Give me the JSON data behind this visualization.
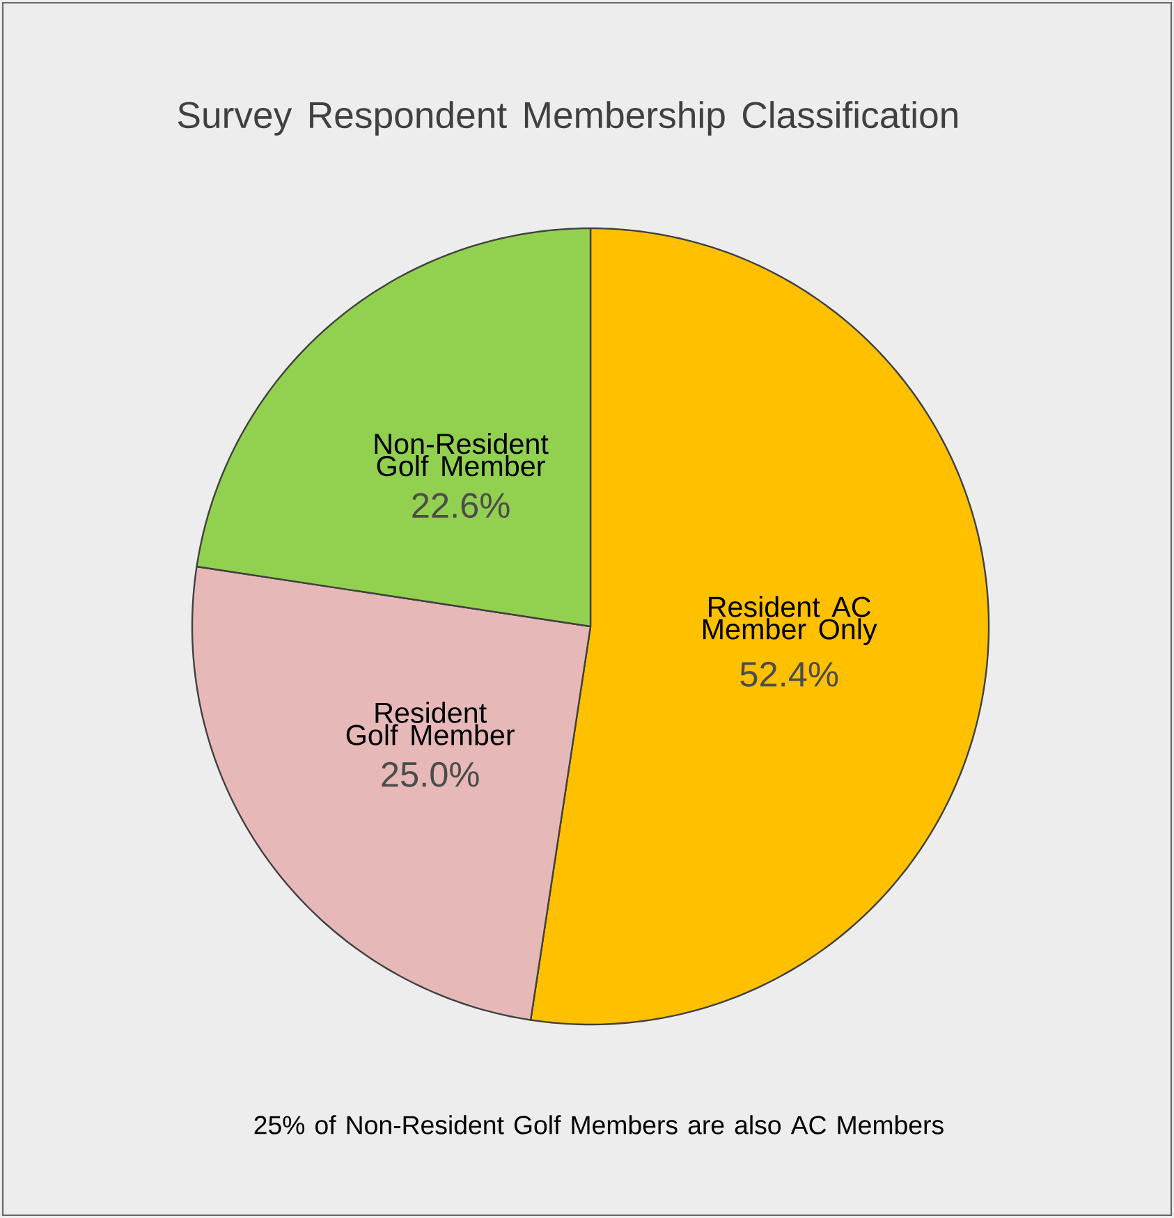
{
  "chart_data": {
    "type": "pie",
    "title": "Survey Respondent Membership Classification",
    "categories": [
      "Resident AC Member Only",
      "Resident Golf Member",
      "Non-Resident Golf Member"
    ],
    "values": [
      52.4,
      25.0,
      22.6
    ],
    "colors": [
      "#ffc000",
      "#e6b9b8",
      "#92d050"
    ],
    "value_labels": [
      "52.4%",
      "25.0%",
      "22.6%"
    ],
    "annotations": [
      "25% of Non-Resident Golf Members are also AC Members"
    ]
  }
}
